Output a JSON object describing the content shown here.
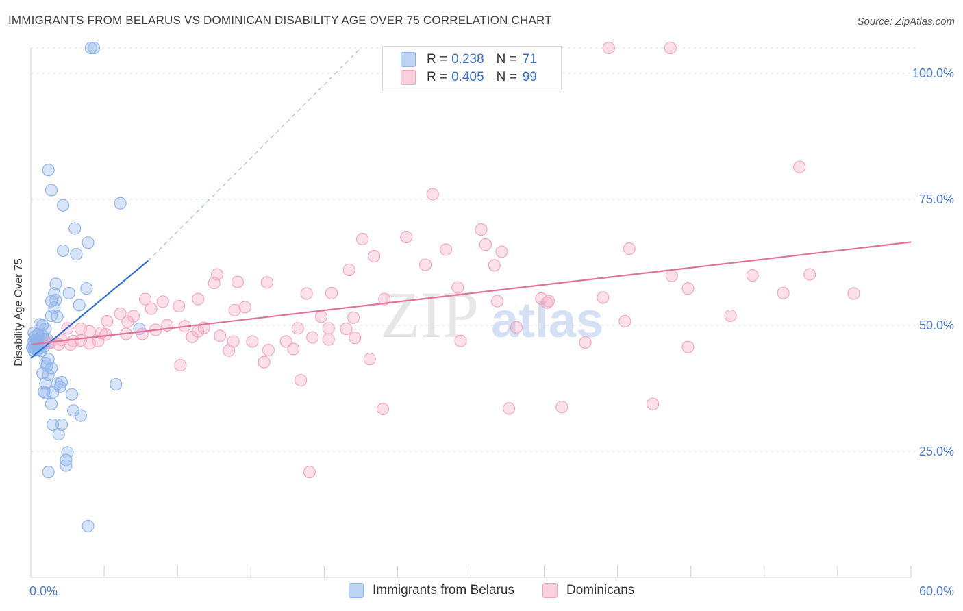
{
  "title": "IMMIGRANTS FROM BELARUS VS DOMINICAN DISABILITY AGE OVER 75 CORRELATION CHART",
  "source": "Source: ZipAtlas.com",
  "watermark": {
    "zip": "ZIP",
    "atlas": "atlas"
  },
  "legend": {
    "rows": [
      {
        "r_label": "R =",
        "r_value": "0.238",
        "n_label": "N =",
        "n_value": "71",
        "color": "#8fb4ec"
      },
      {
        "r_label": "R =",
        "r_value": "0.405",
        "n_label": "N =",
        "n_value": "99",
        "color": "#f4a6bf"
      }
    ]
  },
  "chart_data": {
    "type": "scatter",
    "title": "IMMIGRANTS FROM BELARUS VS DOMINICAN DISABILITY AGE OVER 75 CORRELATION CHART",
    "xlabel": "",
    "ylabel": "Disability Age Over 75",
    "xlim": [
      0,
      60
    ],
    "ylim": [
      0,
      105
    ],
    "x_tick_labels": [
      {
        "value": 0,
        "label": "0.0%"
      },
      {
        "value": 60,
        "label": "60.0%"
      }
    ],
    "y_tick_labels": [
      {
        "value": 25,
        "label": "25.0%"
      },
      {
        "value": 50,
        "label": "50.0%"
      },
      {
        "value": 75,
        "label": "75.0%"
      },
      {
        "value": 100,
        "label": "100.0%"
      }
    ],
    "grid": true,
    "legend_position": "top-center",
    "series": [
      {
        "name": "Immigrants from Belarus",
        "color": "#8fb4ec",
        "line_color": "#2a6fd4",
        "trend": {
          "x": [
            0,
            8
          ],
          "y": [
            43.5,
            62.8
          ],
          "dashed_to": {
            "x": 22.5,
            "y": 105
          }
        },
        "points": [
          [
            4.1,
            105
          ],
          [
            4.3,
            105
          ],
          [
            1.2,
            80.8
          ],
          [
            1.4,
            76.8
          ],
          [
            2.2,
            73.8
          ],
          [
            6.1,
            74.2
          ],
          [
            3.0,
            69.2
          ],
          [
            3.9,
            66.4
          ],
          [
            2.2,
            64.8
          ],
          [
            3.1,
            64.1
          ],
          [
            1.7,
            58.2
          ],
          [
            3.8,
            57.3
          ],
          [
            1.6,
            56.3
          ],
          [
            2.6,
            56.4
          ],
          [
            1.7,
            55.0
          ],
          [
            1.4,
            54.8
          ],
          [
            3.3,
            54.0
          ],
          [
            1.6,
            53.5
          ],
          [
            1.8,
            51.7
          ],
          [
            1.4,
            51.9
          ],
          [
            0.8,
            50.0
          ],
          [
            0.6,
            50.2
          ],
          [
            1.0,
            49.3
          ],
          [
            7.4,
            49.3
          ],
          [
            0.2,
            48.5
          ],
          [
            0.5,
            48.2
          ],
          [
            0.8,
            47.9
          ],
          [
            0.3,
            47.8
          ],
          [
            0.6,
            47.5
          ],
          [
            1.1,
            47.3
          ],
          [
            0.4,
            47.1
          ],
          [
            0.9,
            47.0
          ],
          [
            0.2,
            46.9
          ],
          [
            0.7,
            46.8
          ],
          [
            0.5,
            46.6
          ],
          [
            1.2,
            46.5
          ],
          [
            0.3,
            46.3
          ],
          [
            0.8,
            46.3
          ],
          [
            0.6,
            46.1
          ],
          [
            0.2,
            46.0
          ],
          [
            0.4,
            45.8
          ],
          [
            0.9,
            45.8
          ],
          [
            0.1,
            45.6
          ],
          [
            0.6,
            45.5
          ],
          [
            0.3,
            45.3
          ],
          [
            0.5,
            45.2
          ],
          [
            0.2,
            45.0
          ],
          [
            0.7,
            44.9
          ],
          [
            1.2,
            43.3
          ],
          [
            1.0,
            42.5
          ],
          [
            1.1,
            42.0
          ],
          [
            1.4,
            41.5
          ],
          [
            0.8,
            40.5
          ],
          [
            1.2,
            40.2
          ],
          [
            1.0,
            38.5
          ],
          [
            2.1,
            38.7
          ],
          [
            1.8,
            38.4
          ],
          [
            5.8,
            38.3
          ],
          [
            2.0,
            37.8
          ],
          [
            0.9,
            36.8
          ],
          [
            1.0,
            36.6
          ],
          [
            1.5,
            36.7
          ],
          [
            2.8,
            36.3
          ],
          [
            1.4,
            34.4
          ],
          [
            2.9,
            33.1
          ],
          [
            3.4,
            32.1
          ],
          [
            1.5,
            30.3
          ],
          [
            2.1,
            30.3
          ],
          [
            1.9,
            28.4
          ],
          [
            2.5,
            24.8
          ],
          [
            2.4,
            23.3
          ],
          [
            2.4,
            22.2
          ],
          [
            1.2,
            20.9
          ],
          [
            3.9,
            10.2
          ]
        ]
      },
      {
        "name": "Dominicans",
        "color": "#f4a6bf",
        "line_color": "#e07199",
        "trend": {
          "x": [
            0,
            60
          ],
          "y": [
            46.2,
            66.5
          ]
        },
        "points": [
          [
            39.4,
            105
          ],
          [
            43.6,
            105
          ],
          [
            52.4,
            81.4
          ],
          [
            27.4,
            76.0
          ],
          [
            30.7,
            69.0
          ],
          [
            22.6,
            67.1
          ],
          [
            25.6,
            67.5
          ],
          [
            31.0,
            66.0
          ],
          [
            28.3,
            65.0
          ],
          [
            32.1,
            64.6
          ],
          [
            40.8,
            65.2
          ],
          [
            23.4,
            63.7
          ],
          [
            26.9,
            62.0
          ],
          [
            31.6,
            61.9
          ],
          [
            21.7,
            61.0
          ],
          [
            12.7,
            60.1
          ],
          [
            43.7,
            59.8
          ],
          [
            49.2,
            59.9
          ],
          [
            53.1,
            60.1
          ],
          [
            14.1,
            58.6
          ],
          [
            16.1,
            58.5
          ],
          [
            12.5,
            58.4
          ],
          [
            29.1,
            57.5
          ],
          [
            44.8,
            57.3
          ],
          [
            18.8,
            56.3
          ],
          [
            20.5,
            56.4
          ],
          [
            51.3,
            56.4
          ],
          [
            56.1,
            56.3
          ],
          [
            7.8,
            55.2
          ],
          [
            9.0,
            54.7
          ],
          [
            11.4,
            55.2
          ],
          [
            24.1,
            55.2
          ],
          [
            34.8,
            55.3
          ],
          [
            35.3,
            54.8
          ],
          [
            39.0,
            55.5
          ],
          [
            31.8,
            54.8
          ],
          [
            35.2,
            54.5
          ],
          [
            10.1,
            53.8
          ],
          [
            13.9,
            53.0
          ],
          [
            14.6,
            53.6
          ],
          [
            8.2,
            53.3
          ],
          [
            6.1,
            52.3
          ],
          [
            7.0,
            51.8
          ],
          [
            6.6,
            50.7
          ],
          [
            5.2,
            50.8
          ],
          [
            19.8,
            51.7
          ],
          [
            22.0,
            51.5
          ],
          [
            47.7,
            51.9
          ],
          [
            9.3,
            50.0
          ],
          [
            10.5,
            49.8
          ],
          [
            11.8,
            49.5
          ],
          [
            18.2,
            49.4
          ],
          [
            20.3,
            49.4
          ],
          [
            21.5,
            49.3
          ],
          [
            33.1,
            49.6
          ],
          [
            40.5,
            50.8
          ],
          [
            2.5,
            49.4
          ],
          [
            3.4,
            49.3
          ],
          [
            4.0,
            48.8
          ],
          [
            4.8,
            48.5
          ],
          [
            6.5,
            48.3
          ],
          [
            7.6,
            48.3
          ],
          [
            8.5,
            49.1
          ],
          [
            5.1,
            48.2
          ],
          [
            11.4,
            48.8
          ],
          [
            11.0,
            47.7
          ],
          [
            12.9,
            47.9
          ],
          [
            13.8,
            46.8
          ],
          [
            15.1,
            46.8
          ],
          [
            17.4,
            46.8
          ],
          [
            19.2,
            47.6
          ],
          [
            20.3,
            47.2
          ],
          [
            22.1,
            47.5
          ],
          [
            29.3,
            46.9
          ],
          [
            37.8,
            46.6
          ],
          [
            2.1,
            47.1
          ],
          [
            2.9,
            46.9
          ],
          [
            4.6,
            46.9
          ],
          [
            1.3,
            46.5
          ],
          [
            1.9,
            46.2
          ],
          [
            2.7,
            46.2
          ],
          [
            4.0,
            46.4
          ],
          [
            3.4,
            47.0
          ],
          [
            13.5,
            45.0
          ],
          [
            16.2,
            45.1
          ],
          [
            17.9,
            45.3
          ],
          [
            44.8,
            45.7
          ],
          [
            10.2,
            42.1
          ],
          [
            15.9,
            42.7
          ],
          [
            23.1,
            43.3
          ],
          [
            18.4,
            39.1
          ],
          [
            36.2,
            33.8
          ],
          [
            24.0,
            33.4
          ],
          [
            32.6,
            33.5
          ],
          [
            42.4,
            34.4
          ],
          [
            19.0,
            20.9
          ]
        ]
      }
    ]
  },
  "bottom_legend": [
    {
      "label": "Immigrants from Belarus",
      "color": "#8fb4ec"
    },
    {
      "label": "Dominicans",
      "color": "#f4a6bf"
    }
  ]
}
